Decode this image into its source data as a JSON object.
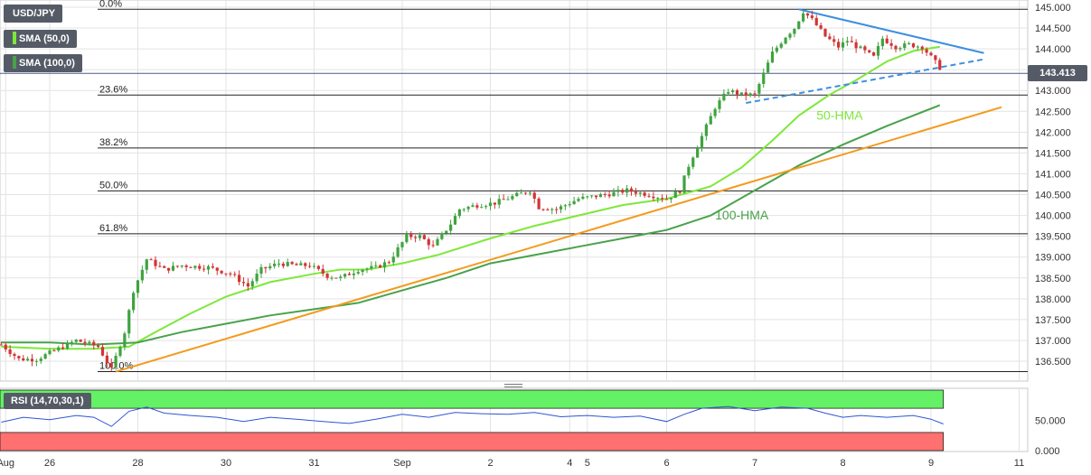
{
  "chart_data": [
    {
      "type": "candlestick",
      "symbol": "USD/JPY",
      "indicators": [
        "SMA (50,0)",
        "SMA (100,0)"
      ],
      "last_price": "143.413",
      "y_ticks": [
        145.0,
        144.5,
        144.0,
        143.5,
        143.0,
        142.5,
        142.0,
        141.5,
        141.0,
        140.5,
        140.0,
        139.5,
        139.0,
        138.5,
        138.0,
        137.5,
        137.0,
        136.5
      ],
      "ylim": [
        136.2,
        145.1
      ],
      "x_ticks": [
        {
          "label": "Aug",
          "t": -0.5
        },
        {
          "label": "26",
          "t": 0.0
        },
        {
          "label": "28",
          "t": 1.0
        },
        {
          "label": "30",
          "t": 2.0
        },
        {
          "label": "31",
          "t": 3.0
        },
        {
          "label": "Sep",
          "t": 4.0
        },
        {
          "label": "2",
          "t": 5.0
        },
        {
          "label": "4",
          "t": 5.9
        },
        {
          "label": "5",
          "t": 6.1
        },
        {
          "label": "6",
          "t": 7.0
        },
        {
          "label": "7",
          "t": 8.0
        },
        {
          "label": "8",
          "t": 9.0
        },
        {
          "label": "9",
          "t": 10.0
        },
        {
          "label": "11",
          "t": 11.0
        }
      ],
      "fibonacci": [
        {
          "label": "0.0%",
          "price": 144.95
        },
        {
          "label": "23.6%",
          "price": 142.89
        },
        {
          "label": "38.2%",
          "price": 141.62
        },
        {
          "label": "50.0%",
          "price": 140.59
        },
        {
          "label": "61.8%",
          "price": 139.56
        },
        {
          "label": "100.0%",
          "price": 136.25
        }
      ],
      "price_path": [
        [
          -0.55,
          136.9
        ],
        [
          -0.35,
          136.55
        ],
        [
          -0.15,
          136.55
        ],
        [
          0.1,
          136.8
        ],
        [
          0.3,
          137.0
        ],
        [
          0.55,
          136.85
        ],
        [
          0.7,
          136.3
        ],
        [
          0.85,
          137.2
        ],
        [
          0.95,
          138.2
        ],
        [
          1.1,
          138.95
        ],
        [
          1.3,
          138.7
        ],
        [
          1.5,
          138.8
        ],
        [
          1.8,
          138.75
        ],
        [
          2.05,
          138.6
        ],
        [
          2.25,
          138.3
        ],
        [
          2.4,
          138.7
        ],
        [
          2.6,
          138.85
        ],
        [
          2.8,
          138.8
        ],
        [
          2.95,
          138.8
        ],
        [
          3.15,
          138.55
        ],
        [
          3.3,
          138.5
        ],
        [
          3.5,
          138.7
        ],
        [
          3.7,
          138.75
        ],
        [
          3.85,
          138.9
        ],
        [
          4.05,
          139.5
        ],
        [
          4.2,
          139.5
        ],
        [
          4.35,
          139.25
        ],
        [
          4.55,
          139.8
        ],
        [
          4.65,
          140.15
        ],
        [
          4.85,
          140.25
        ],
        [
          5.05,
          140.3
        ],
        [
          5.25,
          140.45
        ],
        [
          5.45,
          140.6
        ],
        [
          5.55,
          140.2
        ],
        [
          5.75,
          140.15
        ],
        [
          6.0,
          140.4
        ],
        [
          6.3,
          140.5
        ],
        [
          6.55,
          140.6
        ],
        [
          6.8,
          140.5
        ],
        [
          7.0,
          140.4
        ],
        [
          7.15,
          140.6
        ],
        [
          7.25,
          141.2
        ],
        [
          7.4,
          141.9
        ],
        [
          7.55,
          142.6
        ],
        [
          7.7,
          143.0
        ],
        [
          7.85,
          142.9
        ],
        [
          8.0,
          142.9
        ],
        [
          8.1,
          143.4
        ],
        [
          8.2,
          143.9
        ],
        [
          8.35,
          144.3
        ],
        [
          8.45,
          144.5
        ],
        [
          8.55,
          144.9
        ],
        [
          8.65,
          144.7
        ],
        [
          8.8,
          144.3
        ],
        [
          8.95,
          144.05
        ],
        [
          9.05,
          144.2
        ],
        [
          9.2,
          144.0
        ],
        [
          9.35,
          143.8
        ],
        [
          9.45,
          144.25
        ],
        [
          9.6,
          144.05
        ],
        [
          9.75,
          144.1
        ],
        [
          9.9,
          144.05
        ],
        [
          10.0,
          143.8
        ],
        [
          10.1,
          143.55
        ],
        [
          10.14,
          143.41
        ]
      ],
      "moving_averages": [
        {
          "name": "50-HMA",
          "color": "#7ee83a",
          "points": [
            [
              -0.55,
              136.85
            ],
            [
              0.0,
              136.8
            ],
            [
              0.5,
              136.8
            ],
            [
              0.9,
              136.85
            ],
            [
              1.2,
              137.2
            ],
            [
              1.6,
              137.65
            ],
            [
              2.0,
              138.05
            ],
            [
              2.5,
              138.4
            ],
            [
              3.0,
              138.6
            ],
            [
              3.3,
              138.7
            ],
            [
              3.6,
              138.7
            ],
            [
              4.0,
              138.85
            ],
            [
              4.4,
              139.05
            ],
            [
              5.0,
              139.45
            ],
            [
              5.5,
              139.75
            ],
            [
              6.0,
              140.0
            ],
            [
              6.5,
              140.25
            ],
            [
              7.0,
              140.4
            ],
            [
              7.5,
              140.7
            ],
            [
              7.85,
              141.15
            ],
            [
              8.2,
              141.8
            ],
            [
              8.5,
              142.4
            ],
            [
              8.85,
              142.9
            ],
            [
              9.15,
              143.25
            ],
            [
              9.5,
              143.7
            ],
            [
              9.8,
              143.95
            ],
            [
              10.1,
              144.05
            ]
          ]
        },
        {
          "name": "100-HMA",
          "color": "#49a24a",
          "points": [
            [
              -0.55,
              136.95
            ],
            [
              0.0,
              136.95
            ],
            [
              0.5,
              136.9
            ],
            [
              1.0,
              136.95
            ],
            [
              1.5,
              137.2
            ],
            [
              2.0,
              137.4
            ],
            [
              2.5,
              137.6
            ],
            [
              3.0,
              137.75
            ],
            [
              3.5,
              137.9
            ],
            [
              4.0,
              138.2
            ],
            [
              4.5,
              138.5
            ],
            [
              5.0,
              138.85
            ],
            [
              5.5,
              139.05
            ],
            [
              6.0,
              139.25
            ],
            [
              6.5,
              139.45
            ],
            [
              7.0,
              139.65
            ],
            [
              7.5,
              140.0
            ],
            [
              8.0,
              140.6
            ],
            [
              8.5,
              141.2
            ],
            [
              9.0,
              141.7
            ],
            [
              9.5,
              142.15
            ],
            [
              10.1,
              142.65
            ]
          ]
        }
      ],
      "trendlines": [
        {
          "name": "support",
          "color": "#f39a1e",
          "style": "solid",
          "points": [
            [
              0.75,
              136.25
            ],
            [
              10.8,
              142.6
            ]
          ]
        },
        {
          "name": "triangle-top",
          "color": "#3d8fe0",
          "style": "solid",
          "points": [
            [
              8.5,
              144.95
            ],
            [
              10.6,
              143.9
            ]
          ]
        },
        {
          "name": "triangle-bottom",
          "color": "#3d8fe0",
          "style": "dashed",
          "points": [
            [
              7.9,
              142.7
            ],
            [
              10.6,
              143.75
            ]
          ]
        }
      ],
      "annotations": [
        {
          "text": "50-HMA",
          "t": 8.7,
          "price": 142.3,
          "color": "#7ee83a"
        },
        {
          "text": "100-HMA",
          "t": 7.55,
          "price": 139.9,
          "color": "#49a24a"
        }
      ]
    },
    {
      "type": "line",
      "title": "RSI (14,70,30,1)",
      "y_ticks": [
        "50.000",
        "0.000"
      ],
      "overbought": 70,
      "oversold": 30,
      "series": [
        {
          "color": "#2f55d4",
          "points": [
            [
              -0.55,
              47
            ],
            [
              -0.3,
              55
            ],
            [
              0.0,
              51
            ],
            [
              0.3,
              58
            ],
            [
              0.5,
              55
            ],
            [
              0.7,
              40
            ],
            [
              0.9,
              65
            ],
            [
              1.1,
              72
            ],
            [
              1.3,
              62
            ],
            [
              1.6,
              58
            ],
            [
              1.9,
              55
            ],
            [
              2.2,
              48
            ],
            [
              2.5,
              55
            ],
            [
              2.8,
              52
            ],
            [
              3.1,
              48
            ],
            [
              3.4,
              45
            ],
            [
              3.7,
              52
            ],
            [
              4.0,
              60
            ],
            [
              4.3,
              55
            ],
            [
              4.6,
              63
            ],
            [
              4.9,
              61
            ],
            [
              5.2,
              60
            ],
            [
              5.5,
              63
            ],
            [
              5.8,
              56
            ],
            [
              6.1,
              58
            ],
            [
              6.4,
              55
            ],
            [
              6.7,
              57
            ],
            [
              7.0,
              48
            ],
            [
              7.2,
              60
            ],
            [
              7.4,
              70
            ],
            [
              7.7,
              73
            ],
            [
              8.0,
              66
            ],
            [
              8.3,
              72
            ],
            [
              8.6,
              70
            ],
            [
              8.8,
              62
            ],
            [
              9.0,
              55
            ],
            [
              9.2,
              58
            ],
            [
              9.5,
              55
            ],
            [
              9.8,
              58
            ],
            [
              10.0,
              52
            ],
            [
              10.14,
              44
            ]
          ]
        }
      ]
    }
  ],
  "labels": {
    "symbol": "USD/JPY",
    "sma50": "SMA (50,0)",
    "sma100": "SMA (100,0)",
    "rsi": "RSI (14,70,30,1)",
    "price": "143.413"
  },
  "colors": {
    "up": "#3fa33f",
    "down": "#d23434",
    "grid": "#e3e3e3",
    "overbought_zone": "#65f165",
    "oversold_zone": "#ff7070"
  }
}
